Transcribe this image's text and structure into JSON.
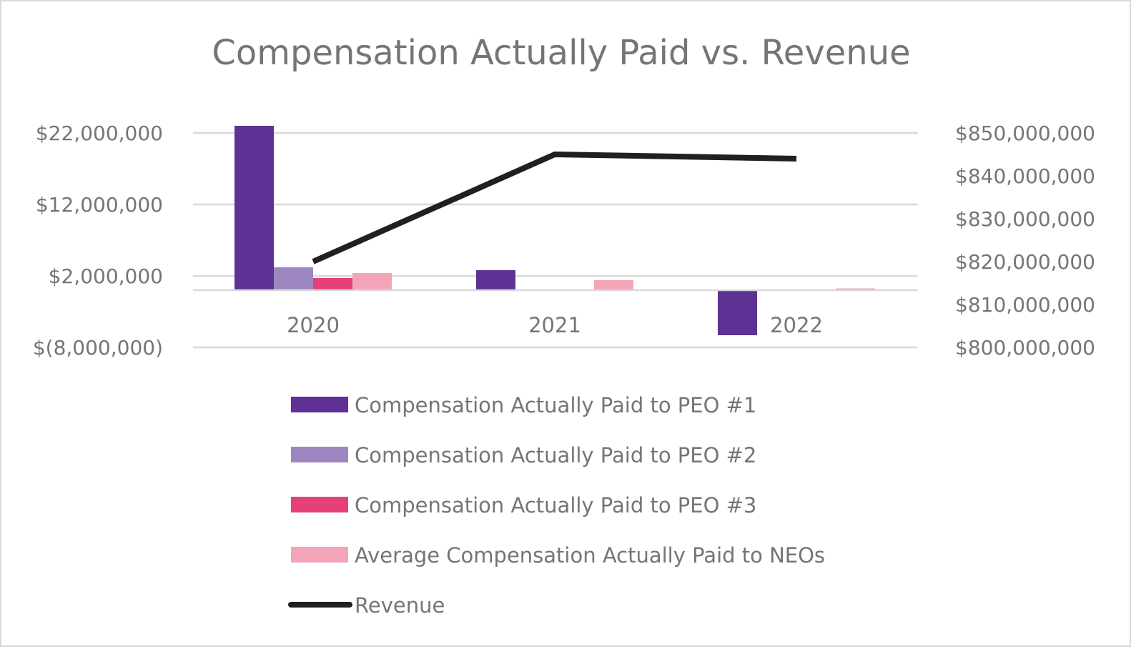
{
  "chart_data": {
    "type": "bar",
    "title": "Compensation Actually Paid vs. Revenue",
    "categories": [
      "2020",
      "2021",
      "2022"
    ],
    "left_axis": {
      "ylim": [
        -8000000,
        22000000
      ],
      "ticks": [
        22000000,
        12000000,
        2000000,
        -8000000
      ],
      "tick_labels": [
        "$22,000,000",
        "$12,000,000",
        "$2,000,000",
        "$(8,000,000)"
      ]
    },
    "right_axis": {
      "ylim": [
        800000000,
        850000000
      ],
      "ticks": [
        850000000,
        840000000,
        830000000,
        820000000,
        810000000,
        800000000
      ],
      "tick_labels": [
        "$850,000,000",
        "$840,000,000",
        "$830,000,000",
        "$820,000,000",
        "$810,000,000",
        "$800,000,000"
      ]
    },
    "series": [
      {
        "name": "Compensation Actually Paid to PEO #1",
        "type": "bar",
        "axis": "left",
        "color": "#5e3194",
        "values": [
          23000000,
          2800000,
          -6300000
        ]
      },
      {
        "name": "Compensation Actually Paid to PEO #2",
        "type": "bar",
        "axis": "left",
        "color": "#9e86c1",
        "values": [
          3200000,
          null,
          null
        ]
      },
      {
        "name": "Compensation Actually Paid to PEO #3",
        "type": "bar",
        "axis": "left",
        "color": "#e5407a",
        "values": [
          1700000,
          null,
          null
        ]
      },
      {
        "name": "Average Compensation Actually Paid to NEOs",
        "type": "bar",
        "axis": "left",
        "color": "#f3a5b8",
        "values": [
          2400000,
          1400000,
          250000
        ]
      },
      {
        "name": "Revenue",
        "type": "line",
        "axis": "right",
        "color": "#231f20",
        "values": [
          820000000,
          845000000,
          844000000
        ]
      }
    ],
    "grid": true,
    "legend_position": "bottom"
  }
}
